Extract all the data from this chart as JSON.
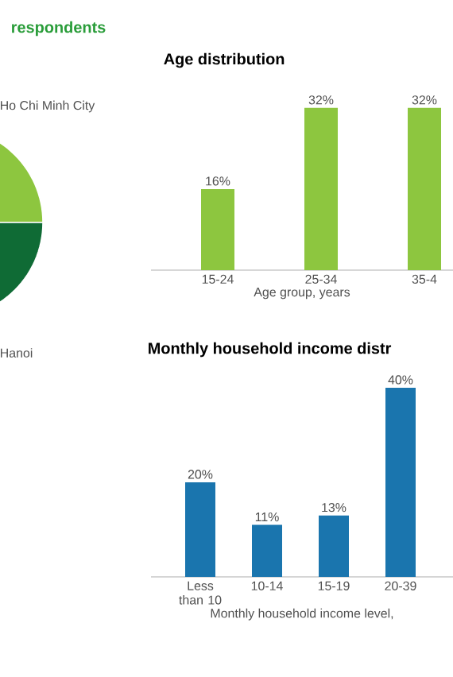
{
  "chart_data": [
    {
      "type": "pie",
      "title": "respondents",
      "categories": [
        "Ho Chi Minh City",
        "Hanoi"
      ],
      "values": [
        50,
        50
      ],
      "colors": [
        "#8dc63f",
        "#0f6b35"
      ]
    },
    {
      "type": "bar",
      "title": "Age distribution",
      "xlabel": "Age group, years",
      "categories": [
        "15-24",
        "25-34",
        "35-4"
      ],
      "values": [
        16,
        32,
        32
      ],
      "value_labels": [
        "16%",
        "32%",
        "32%"
      ],
      "color": "#8dc63f"
    },
    {
      "type": "bar",
      "title": "Monthly household income distr",
      "xlabel": "Monthly household income level,",
      "categories": [
        "Less than 10",
        "10-14",
        "15-19",
        "20-39"
      ],
      "values": [
        20,
        11,
        13,
        40
      ],
      "value_labels": [
        "20%",
        "11%",
        "13%",
        "40%"
      ],
      "color": "#1a75ae"
    }
  ]
}
